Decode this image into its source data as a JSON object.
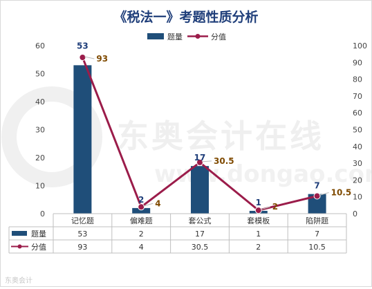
{
  "chart_data": {
    "type": "bar",
    "title": "《税法一》考题性质分析",
    "categories": [
      "记忆题",
      "偏难题",
      "套公式",
      "套模板",
      "陷阱题"
    ],
    "series": [
      {
        "name": "题量",
        "type": "bar",
        "axis": "left",
        "color": "#1f4e79",
        "values": [
          53,
          2,
          17,
          1,
          7
        ]
      },
      {
        "name": "分值",
        "type": "line",
        "axis": "right",
        "color": "#9b1c4a",
        "values": [
          93,
          4,
          30.5,
          2,
          10.5
        ]
      }
    ],
    "y_left": {
      "min": 0,
      "max": 60,
      "step": 10
    },
    "y_right": {
      "min": 0,
      "max": 100,
      "step": 10
    },
    "legend_position": "top",
    "grid": false,
    "data_table": true
  },
  "watermark": {
    "main": "东奥会计在线",
    "sub": "www.dongao.com",
    "footer": "东奥会计"
  }
}
